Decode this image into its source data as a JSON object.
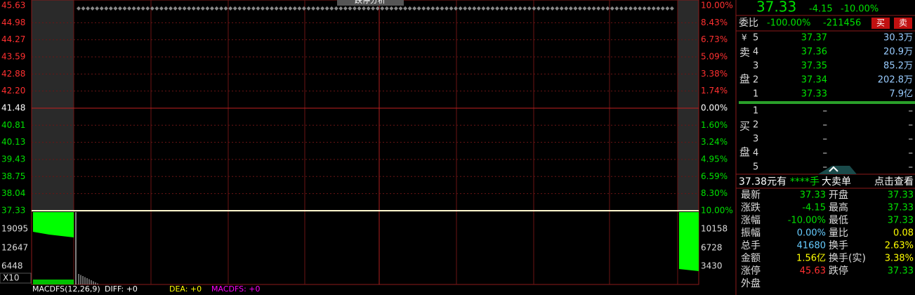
{
  "price_chart": {
    "left_labels": [
      "45.63",
      "44.98",
      "44.27",
      "43.59",
      "42.88",
      "42.20",
      "41.48",
      "40.81",
      "40.13",
      "39.43",
      "38.75",
      "38.04",
      "37.33"
    ],
    "right_labels": [
      "10.00%",
      "8.43%",
      "6.73%",
      "5.09%",
      "3.38%",
      "1.74%",
      "0.00%",
      "1.60%",
      "3.24%",
      "4.95%",
      "6.59%",
      "8.30%",
      "10.00%"
    ],
    "volume_left": [
      "19095",
      "12647",
      "6448",
      "X10"
    ],
    "volume_right": [
      "10158",
      "6728",
      "3430"
    ],
    "button": "跌停分析",
    "indicator": [
      "MACDFS(12,26,9)",
      "DIFF: +0",
      "DEA: +0",
      "MACDFS: +0"
    ]
  },
  "quote": {
    "price": "37.33",
    "change": "-4.15",
    "change_pct": "-10.00%"
  },
  "order_ratio": {
    "label": "委比",
    "ratio": "-100.00%",
    "diff": "-211456",
    "buy": "买",
    "sell": "卖"
  },
  "sell_side": {
    "label": [
      "卖",
      "盘"
    ],
    "symbol": "¥",
    "levels": [
      {
        "level": "5",
        "price": "37.37",
        "volume": "30.3万"
      },
      {
        "level": "4",
        "price": "37.36",
        "volume": "20.9万"
      },
      {
        "level": "3",
        "price": "37.35",
        "volume": "85.2万"
      },
      {
        "level": "2",
        "price": "37.34",
        "volume": "202.8万"
      },
      {
        "level": "1",
        "price": "37.33",
        "volume": "7.9亿"
      }
    ]
  },
  "buy_side": {
    "label": [
      "买",
      "盘"
    ],
    "levels": [
      {
        "level": "1",
        "price": "–",
        "volume": "–"
      },
      {
        "level": "2",
        "price": "–",
        "volume": "–"
      },
      {
        "level": "3",
        "price": "–",
        "volume": "–"
      },
      {
        "level": "4",
        "price": "–",
        "volume": "–"
      },
      {
        "level": "5",
        "price": "–",
        "volume": "–"
      }
    ]
  },
  "big_order": [
    "37.38元有",
    "****手",
    "大卖单",
    "点击查看"
  ],
  "stats": {
    "rows": [
      [
        "最新",
        "37.33",
        "开盘",
        "37.33"
      ],
      [
        "涨跌",
        "-4.15",
        "最高",
        "37.33"
      ],
      [
        "涨幅",
        "-10.00%",
        "最低",
        "37.33"
      ],
      [
        "振幅",
        "0.00%",
        "量比",
        "0.08"
      ],
      [
        "总手",
        "41680",
        "换手",
        "2.63%"
      ],
      [
        "金额",
        "1.56亿",
        "换手(实)",
        "3.38%"
      ],
      [
        "涨停",
        "45.63",
        "跌停",
        "37.33"
      ],
      [
        "外盘"
      ]
    ]
  }
}
